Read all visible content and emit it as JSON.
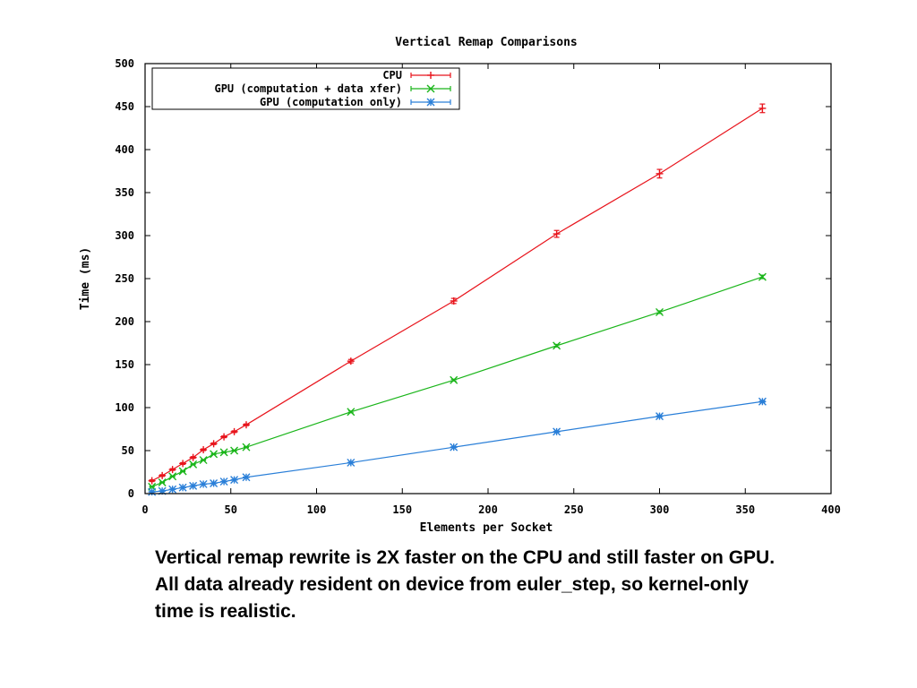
{
  "chart_data": {
    "type": "line",
    "title": "Vertical Remap Comparisons",
    "xlabel": "Elements per Socket",
    "ylabel": "Time (ms)",
    "xlim": [
      0,
      400
    ],
    "ylim": [
      0,
      500
    ],
    "xticks": [
      0,
      50,
      100,
      150,
      200,
      250,
      300,
      350,
      400
    ],
    "yticks": [
      0,
      50,
      100,
      150,
      200,
      250,
      300,
      350,
      400,
      450,
      500
    ],
    "grid": false,
    "legend_position": "top-left",
    "error_bars": true,
    "series": [
      {
        "name": "CPU",
        "color": "#e8141c",
        "marker": "plus",
        "x": [
          4,
          10,
          16,
          22,
          28,
          34,
          40,
          46,
          52,
          59,
          120,
          180,
          240,
          300,
          360
        ],
        "y": [
          15,
          21,
          28,
          35,
          42,
          51,
          58,
          66,
          72,
          80,
          154,
          224,
          302,
          372,
          448
        ],
        "err": [
          1,
          1,
          1,
          1,
          1,
          1,
          1,
          1,
          1,
          1,
          2,
          3,
          4,
          5,
          5
        ]
      },
      {
        "name": "GPU (computation + data xfer)",
        "color": "#1ab51a",
        "marker": "cross",
        "x": [
          4,
          10,
          16,
          22,
          28,
          34,
          40,
          46,
          52,
          59,
          120,
          180,
          240,
          300,
          360
        ],
        "y": [
          8,
          13,
          20,
          26,
          34,
          39,
          46,
          48,
          50,
          54,
          95,
          132,
          172,
          211,
          252
        ],
        "err": [
          0.5,
          0.5,
          0.5,
          0.5,
          0.5,
          0.5,
          0.5,
          0.5,
          0.5,
          0.5,
          1,
          1,
          1.5,
          1.5,
          2
        ]
      },
      {
        "name": "GPU (computation only)",
        "color": "#2a7fd8",
        "marker": "star",
        "x": [
          4,
          10,
          16,
          22,
          28,
          34,
          40,
          46,
          52,
          59,
          120,
          180,
          240,
          300,
          360
        ],
        "y": [
          2,
          3,
          5,
          7,
          9,
          11,
          12,
          14,
          16,
          19,
          36,
          54,
          72,
          90,
          107
        ],
        "err": [
          0.3,
          0.3,
          0.3,
          0.3,
          0.3,
          0.3,
          0.3,
          0.3,
          0.3,
          0.3,
          0.5,
          0.5,
          0.7,
          0.8,
          1
        ]
      }
    ]
  },
  "caption": {
    "line1": "Vertical remap rewrite is 2X faster on the CPU and still faster on GPU.",
    "line2": "All data already resident on device from euler_step, so kernel-only",
    "line3": "time is realistic."
  }
}
